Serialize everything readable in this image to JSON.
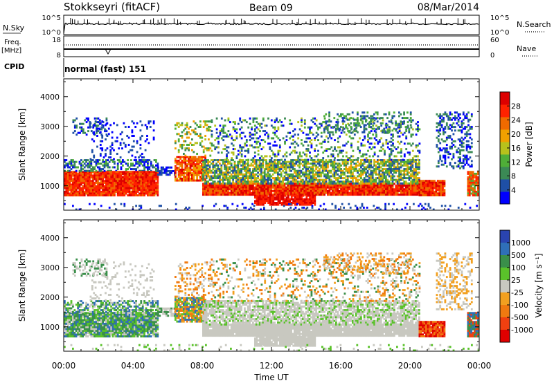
{
  "header": {
    "site": "Stokkseyri (fitACF)",
    "beam": "Beam 09",
    "date": "08/Mar/2014"
  },
  "cpid_label": "CPID",
  "cpid_value": "normal (fast) 151",
  "colors": {
    "power": [
      "#0000ff",
      "#1e4fa6",
      "#3b8a55",
      "#4fae38",
      "#b7c11c",
      "#f0a000",
      "#f06a00",
      "#ff2200",
      "#dd0000"
    ],
    "velocity": [
      "#2a44b0",
      "#2f6fb8",
      "#3a8f4a",
      "#5ac22a",
      "#c8c8c0",
      "#f2a020",
      "#f07a10",
      "#f04010",
      "#e00000"
    ],
    "grey": "#c8c8c0"
  },
  "chart_data": [
    {
      "type": "line",
      "panel": "noise",
      "y_left_label": "N.Sky",
      "y_right_label": "N.Search",
      "y_left_ticks": [
        "10^5",
        "10^0"
      ],
      "y_right_ticks": [
        "10^5",
        "10^0"
      ],
      "x_range_hours": [
        0,
        24
      ],
      "level": 0.25
    },
    {
      "type": "line",
      "panel": "frequency",
      "y_left_label": "Freq. [MHz]",
      "y_right_label": "Nave",
      "y_left_ticks": [
        "18",
        "8"
      ],
      "y_right_ticks": [
        "60",
        "0"
      ],
      "freq_level_mhz": 10,
      "nave_level": 40
    },
    {
      "type": "heatmap",
      "panel": "power",
      "ylabel": "Slant Range [km]",
      "ylim": [
        180,
        4600
      ],
      "yticks": [
        1000,
        2000,
        3000,
        4000
      ],
      "colorbar_label": "Power [dB]",
      "colorbar_ticks": [
        4,
        8,
        12,
        16,
        20,
        24,
        28
      ],
      "colorbar_range": [
        0,
        32
      ]
    },
    {
      "type": "heatmap",
      "panel": "velocity",
      "ylabel": "Slant Range [km]",
      "ylim": [
        180,
        4600
      ],
      "yticks": [
        1000,
        2000,
        3000,
        4000
      ],
      "colorbar_label": "Velocity [m s⁻¹]",
      "colorbar_ticks": [
        "1000",
        "500",
        "100",
        "25",
        "-25",
        "-100",
        "-500",
        "-1000"
      ]
    }
  ],
  "xaxis": {
    "label": "Time UT",
    "ticks": [
      "00:00",
      "04:00",
      "08:00",
      "12:00",
      "16:00",
      "20:00",
      "00:00"
    ],
    "tick_hours": [
      0,
      4,
      8,
      12,
      16,
      20,
      24
    ]
  }
}
